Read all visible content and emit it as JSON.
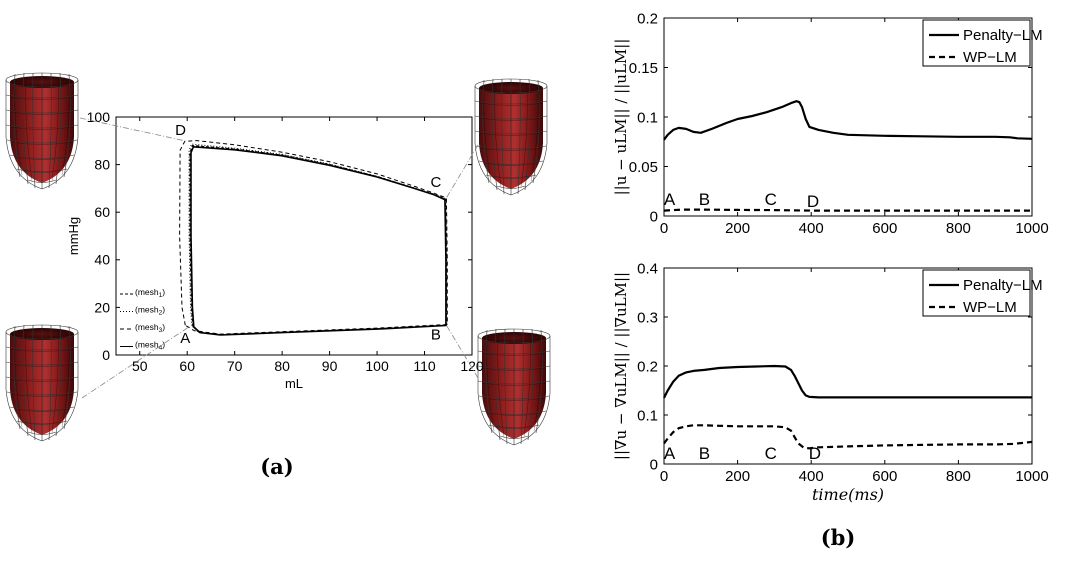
{
  "captions": {
    "a": "(a)",
    "b": "(b)"
  },
  "chart_data": [
    {
      "id": "pv-loop",
      "type": "line",
      "xlabel": "mL",
      "ylabel": "mmHg",
      "xlim": [
        45,
        120
      ],
      "ylim": [
        0,
        100
      ],
      "xticks": [
        50,
        60,
        70,
        80,
        90,
        100,
        110,
        120
      ],
      "yticks": [
        0,
        20,
        40,
        60,
        80,
        100
      ],
      "legend_position": "bottom-left",
      "series": [
        {
          "name": "(mesh1)",
          "label_base": "(mesh",
          "label_sub": "1",
          "label_end": ")",
          "dash": "3,2",
          "width": 1.2,
          "x": [
            61.2,
            60.9,
            60.6,
            60.6,
            61.1,
            70,
            80,
            90,
            100,
            108,
            112,
            114.4,
            114.6,
            114.6,
            100,
            80,
            67,
            62.5,
            61.2
          ],
          "y": [
            12.0,
            20,
            50,
            85,
            88.0,
            86.5,
            84.0,
            80.0,
            75.0,
            70.0,
            67.5,
            65.5,
            40,
            12.5,
            11.0,
            9.5,
            8.5,
            9.5,
            12.0
          ]
        },
        {
          "name": "(mesh2)",
          "label_base": "(mesh",
          "label_sub": "2",
          "label_end": ")",
          "dash": "1,2",
          "width": 1.0,
          "x": [
            61.0,
            60.7,
            60.4,
            60.4,
            60.9,
            70,
            80,
            90,
            100,
            108,
            112,
            114.5,
            114.7,
            114.7,
            100,
            80,
            67,
            62.3,
            61.0
          ],
          "y": [
            12.3,
            20,
            50,
            86,
            88.6,
            86.9,
            84.3,
            80.2,
            75.1,
            70.1,
            67.6,
            65.6,
            40,
            12.6,
            11.1,
            9.6,
            8.6,
            9.7,
            12.3
          ]
        },
        {
          "name": "(mesh3)",
          "label_base": "(mesh",
          "label_sub": "3",
          "label_end": ")",
          "dash": "4,3",
          "width": 1.0,
          "x": [
            59.6,
            58.9,
            58.4,
            58.5,
            59.5,
            62,
            70,
            80,
            90,
            100,
            108,
            112,
            114.6,
            114.8,
            114.8,
            100,
            80,
            67,
            61.5,
            59.6
          ],
          "y": [
            12.5,
            20,
            50,
            86,
            89.8,
            90.1,
            88.3,
            85.2,
            81.2,
            76.1,
            70.8,
            68.0,
            66.0,
            40,
            12.8,
            11.3,
            9.8,
            8.8,
            10.2,
            12.5
          ]
        },
        {
          "name": "(mesh4)",
          "label_base": "(mesh",
          "label_sub": "4",
          "label_end": ")",
          "dash": "",
          "width": 1.6,
          "x": [
            61.4,
            61.1,
            60.8,
            60.8,
            61.3,
            70,
            80,
            90,
            100,
            108,
            112,
            114.3,
            114.5,
            114.5,
            100,
            80,
            67,
            62.7,
            61.4
          ],
          "y": [
            11.8,
            20,
            50,
            85,
            87.5,
            86.2,
            83.7,
            79.7,
            74.8,
            69.9,
            67.3,
            65.3,
            40,
            12.4,
            10.9,
            9.4,
            8.4,
            9.4,
            11.8
          ]
        }
      ],
      "point_labels": [
        {
          "text": "D",
          "x": 58.6,
          "y": 92.5
        },
        {
          "text": "C",
          "x": 112.4,
          "y": 70.5
        },
        {
          "text": "A",
          "x": 59.6,
          "y": 5.0
        },
        {
          "text": "B",
          "x": 112.4,
          "y": 6.5
        }
      ],
      "heart_connectors": [
        {
          "corner": "top-left",
          "x": 59.5,
          "y": 90
        },
        {
          "corner": "top-right",
          "x": 114.6,
          "y": 66
        },
        {
          "corner": "bottom-left",
          "x": 60.5,
          "y": 12
        },
        {
          "corner": "bottom-right",
          "x": 114.6,
          "y": 12.5
        }
      ]
    },
    {
      "id": "disp-error",
      "type": "line",
      "ylabel": "||u − uLM|| / ||uLM||",
      "xlim": [
        0,
        1000
      ],
      "ylim": [
        0,
        0.2
      ],
      "xticks": [
        0,
        200,
        400,
        600,
        800,
        1000
      ],
      "yticks": [
        0,
        0.05,
        0.1,
        0.15,
        0.2
      ],
      "ytick_labels": [
        "0",
        "0.05",
        "0.1",
        "0.15",
        "0.2"
      ],
      "legend_position": "top-right",
      "series": [
        {
          "name": "Penalty−LM",
          "dash": "",
          "width": 2.2,
          "x": [
            0,
            10,
            25,
            40,
            60,
            80,
            100,
            130,
            170,
            200,
            240,
            280,
            320,
            345,
            360,
            368,
            375,
            385,
            395,
            420,
            460,
            500,
            600,
            700,
            800,
            900,
            940,
            960,
            1000
          ],
          "y": [
            0.077,
            0.082,
            0.087,
            0.089,
            0.088,
            0.085,
            0.084,
            0.088,
            0.094,
            0.098,
            0.101,
            0.105,
            0.11,
            0.114,
            0.116,
            0.115,
            0.11,
            0.098,
            0.09,
            0.087,
            0.084,
            0.082,
            0.081,
            0.0805,
            0.08,
            0.08,
            0.0795,
            0.0785,
            0.078
          ]
        },
        {
          "name": "WP−LM",
          "dash": "6,4",
          "width": 2.2,
          "x": [
            0,
            50,
            100,
            200,
            300,
            400,
            500,
            600,
            700,
            800,
            900,
            1000
          ],
          "y": [
            0.0055,
            0.0065,
            0.0065,
            0.0062,
            0.006,
            0.0055,
            0.0055,
            0.0055,
            0.0055,
            0.0055,
            0.0055,
            0.0055
          ]
        }
      ],
      "phase_labels": [
        {
          "text": "A",
          "x": 15,
          "y": 0.011
        },
        {
          "text": "B",
          "x": 110,
          "y": 0.011
        },
        {
          "text": "C",
          "x": 290,
          "y": 0.011
        },
        {
          "text": "D",
          "x": 405,
          "y": 0.009
        }
      ]
    },
    {
      "id": "grad-error",
      "type": "line",
      "ylabel": "||∇u − ∇uLM|| / ||∇uLM||",
      "xlabel": "time(ms)",
      "xlim": [
        0,
        1000
      ],
      "ylim": [
        0,
        0.4
      ],
      "xticks": [
        0,
        200,
        400,
        600,
        800,
        1000
      ],
      "yticks": [
        0,
        0.1,
        0.2,
        0.3,
        0.4
      ],
      "ytick_labels": [
        "0",
        "0.1",
        "0.2",
        "0.3",
        "0.4"
      ],
      "legend_position": "top-right",
      "series": [
        {
          "name": "Penalty−LM",
          "dash": "",
          "width": 2.2,
          "x": [
            0,
            10,
            25,
            40,
            60,
            80,
            110,
            150,
            200,
            250,
            300,
            330,
            345,
            355,
            365,
            375,
            385,
            395,
            420,
            500,
            600,
            700,
            800,
            900,
            1000
          ],
          "y": [
            0.135,
            0.15,
            0.168,
            0.18,
            0.187,
            0.19,
            0.192,
            0.196,
            0.198,
            0.199,
            0.2,
            0.199,
            0.192,
            0.18,
            0.165,
            0.15,
            0.14,
            0.137,
            0.136,
            0.136,
            0.136,
            0.136,
            0.136,
            0.136,
            0.136
          ]
        },
        {
          "name": "WP−LM",
          "dash": "6,4",
          "width": 2.2,
          "x": [
            0,
            10,
            25,
            40,
            60,
            80,
            110,
            150,
            200,
            250,
            300,
            330,
            345,
            355,
            365,
            380,
            395,
            420,
            500,
            600,
            700,
            800,
            900,
            950,
            1000
          ],
          "y": [
            0.042,
            0.052,
            0.065,
            0.073,
            0.077,
            0.079,
            0.079,
            0.078,
            0.077,
            0.077,
            0.077,
            0.075,
            0.068,
            0.055,
            0.042,
            0.033,
            0.032,
            0.034,
            0.036,
            0.038,
            0.039,
            0.04,
            0.04,
            0.041,
            0.045
          ]
        }
      ],
      "phase_labels": [
        {
          "text": "A",
          "x": 15,
          "y": 0.01
        },
        {
          "text": "B",
          "x": 110,
          "y": 0.01
        },
        {
          "text": "C",
          "x": 290,
          "y": 0.01
        },
        {
          "text": "D",
          "x": 410,
          "y": 0.01
        }
      ]
    }
  ]
}
